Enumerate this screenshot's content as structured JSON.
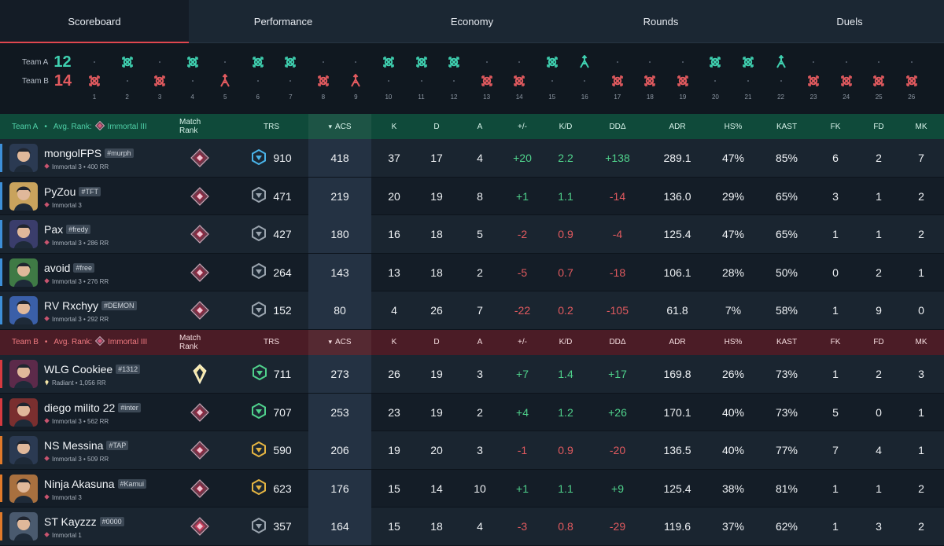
{
  "tabs": [
    "Scoreboard",
    "Performance",
    "Economy",
    "Rounds",
    "Duels"
  ],
  "timeline": {
    "team_a": {
      "label": "Team A",
      "score": "12",
      "color": "#3fd0b0"
    },
    "team_b": {
      "label": "Team B",
      "score": "14",
      "color": "#e25a5f"
    },
    "round_winners": [
      "B",
      "A",
      "B",
      "A",
      "B",
      "A",
      "A",
      "B",
      "B",
      "A",
      "A",
      "A",
      "B",
      "B",
      "A",
      "A",
      "B",
      "B",
      "B",
      "A",
      "A",
      "A",
      "B",
      "B",
      "B",
      "B"
    ],
    "win_icons": [
      "elim",
      "elim",
      "elim",
      "elim",
      "defuse",
      "elim",
      "elim",
      "elim",
      "defuse",
      "elim",
      "elim",
      "elim",
      "elim",
      "elim",
      "elim",
      "defuse",
      "elim",
      "elim",
      "elim",
      "elim",
      "elim",
      "defuse",
      "elim",
      "elim",
      "elim",
      "elim"
    ]
  },
  "columns": {
    "match_rank": "Match Rank",
    "trs": "TRS",
    "acs": "ACS",
    "k": "K",
    "d": "D",
    "a": "A",
    "pm": "+/-",
    "kd": "K/D",
    "dd": "DDΔ",
    "adr": "ADR",
    "hs": "HS%",
    "kast": "KAST",
    "fk": "FK",
    "fd": "FD",
    "mk": "MK"
  },
  "team_a": {
    "label": "Team A",
    "avg_label": "Avg. Rank:",
    "avg_rank": "Immortal III",
    "color": "#3fd0b0",
    "players": [
      {
        "name": "mongolFPS",
        "tag": "#murph",
        "rank_text": "Immortal 3 • 400 RR",
        "bar": "#3d8fd8",
        "avatar": "#2b3a52",
        "trs": "910",
        "trs_color": "#49b3e8",
        "acs": "418",
        "k": "37",
        "d": "17",
        "a": "4",
        "pm": "+20",
        "kd": "2.2",
        "dd": "+138",
        "adr": "289.1",
        "hs": "47%",
        "kast": "85%",
        "fk": "6",
        "fd": "2",
        "mk": "7"
      },
      {
        "name": "PyZou",
        "tag": "#TFT",
        "rank_text": "Immortal 3",
        "bar": "#3d8fd8",
        "avatar": "#c9a35d",
        "trs": "471",
        "trs_color": "#9aa4ae",
        "acs": "219",
        "k": "20",
        "d": "19",
        "a": "8",
        "pm": "+1",
        "kd": "1.1",
        "dd": "-14",
        "adr": "136.0",
        "hs": "29%",
        "kast": "65%",
        "fk": "3",
        "fd": "1",
        "mk": "2"
      },
      {
        "name": "Pax",
        "tag": "#fredy",
        "rank_text": "Immortal 3 • 286 RR",
        "bar": "#3d8fd8",
        "avatar": "#3a3d6b",
        "trs": "427",
        "trs_color": "#9aa4ae",
        "acs": "180",
        "k": "16",
        "d": "18",
        "a": "5",
        "pm": "-2",
        "kd": "0.9",
        "dd": "-4",
        "adr": "125.4",
        "hs": "47%",
        "kast": "65%",
        "fk": "1",
        "fd": "1",
        "mk": "2"
      },
      {
        "name": "avoid",
        "tag": "#free",
        "rank_text": "Immortal 3 • 276 RR",
        "bar": "#3d8fd8",
        "avatar": "#3f7a45",
        "trs": "264",
        "trs_color": "#9aa4ae",
        "acs": "143",
        "k": "13",
        "d": "18",
        "a": "2",
        "pm": "-5",
        "kd": "0.7",
        "dd": "-18",
        "adr": "106.1",
        "hs": "28%",
        "kast": "50%",
        "fk": "0",
        "fd": "2",
        "mk": "1"
      },
      {
        "name": "RV Rxchyy",
        "tag": "#DEMON",
        "rank_text": "Immortal 3 • 292 RR",
        "bar": "#3d8fd8",
        "avatar": "#3a5fa8",
        "trs": "152",
        "trs_color": "#9aa4ae",
        "acs": "80",
        "k": "4",
        "d": "26",
        "a": "7",
        "pm": "-22",
        "kd": "0.2",
        "dd": "-105",
        "adr": "61.8",
        "hs": "7%",
        "kast": "58%",
        "fk": "1",
        "fd": "9",
        "mk": "0"
      }
    ]
  },
  "team_b": {
    "label": "Team B",
    "avg_label": "Avg. Rank:",
    "avg_rank": "Immortal III",
    "color": "#e25a5f",
    "players": [
      {
        "name": "WLG Cookiee",
        "tag": "#1312",
        "rank_text": "Radiant • 1,056 RR",
        "bar": "#d63a40",
        "avatar": "#5c2a4a",
        "trs": "711",
        "trs_color": "#4fd18b",
        "acs": "273",
        "k": "26",
        "d": "19",
        "a": "3",
        "pm": "+7",
        "kd": "1.4",
        "dd": "+17",
        "adr": "169.8",
        "hs": "26%",
        "kast": "73%",
        "fk": "1",
        "fd": "2",
        "mk": "3"
      },
      {
        "name": "diego milito 22",
        "tag": "#inter",
        "rank_text": "Immortal 3 • 562 RR",
        "bar": "#d63a40",
        "avatar": "#7a2f2f",
        "trs": "707",
        "trs_color": "#4fd18b",
        "acs": "253",
        "k": "23",
        "d": "19",
        "a": "2",
        "pm": "+4",
        "kd": "1.2",
        "dd": "+26",
        "adr": "170.1",
        "hs": "40%",
        "kast": "73%",
        "fk": "5",
        "fd": "0",
        "mk": "1"
      },
      {
        "name": "NS Messina",
        "tag": "#TAP",
        "rank_text": "Immortal 3 • 509 RR",
        "bar": "#e07a2a",
        "avatar": "#2b3a52",
        "trs": "590",
        "trs_color": "#e3b341",
        "acs": "206",
        "k": "19",
        "d": "20",
        "a": "3",
        "pm": "-1",
        "kd": "0.9",
        "dd": "-20",
        "adr": "136.5",
        "hs": "40%",
        "kast": "77%",
        "fk": "7",
        "fd": "4",
        "mk": "1"
      },
      {
        "name": "Ninja Akasuna",
        "tag": "#Kamui",
        "rank_text": "Immortal 3",
        "bar": "#e07a2a",
        "avatar": "#a8703f",
        "trs": "623",
        "trs_color": "#e3b341",
        "acs": "176",
        "k": "15",
        "d": "14",
        "a": "10",
        "pm": "+1",
        "kd": "1.1",
        "dd": "+9",
        "adr": "125.4",
        "hs": "38%",
        "kast": "81%",
        "fk": "1",
        "fd": "1",
        "mk": "2"
      },
      {
        "name": "ST Kayzzz",
        "tag": "#0000",
        "rank_text": "Immortal 1",
        "bar": "#e07a2a",
        "avatar": "#4a5a6e",
        "trs": "357",
        "trs_color": "#9aa4ae",
        "acs": "164",
        "k": "15",
        "d": "18",
        "a": "4",
        "pm": "-3",
        "kd": "0.8",
        "dd": "-29",
        "adr": "119.6",
        "hs": "37%",
        "kast": "62%",
        "fk": "1",
        "fd": "3",
        "mk": "2"
      }
    ]
  }
}
